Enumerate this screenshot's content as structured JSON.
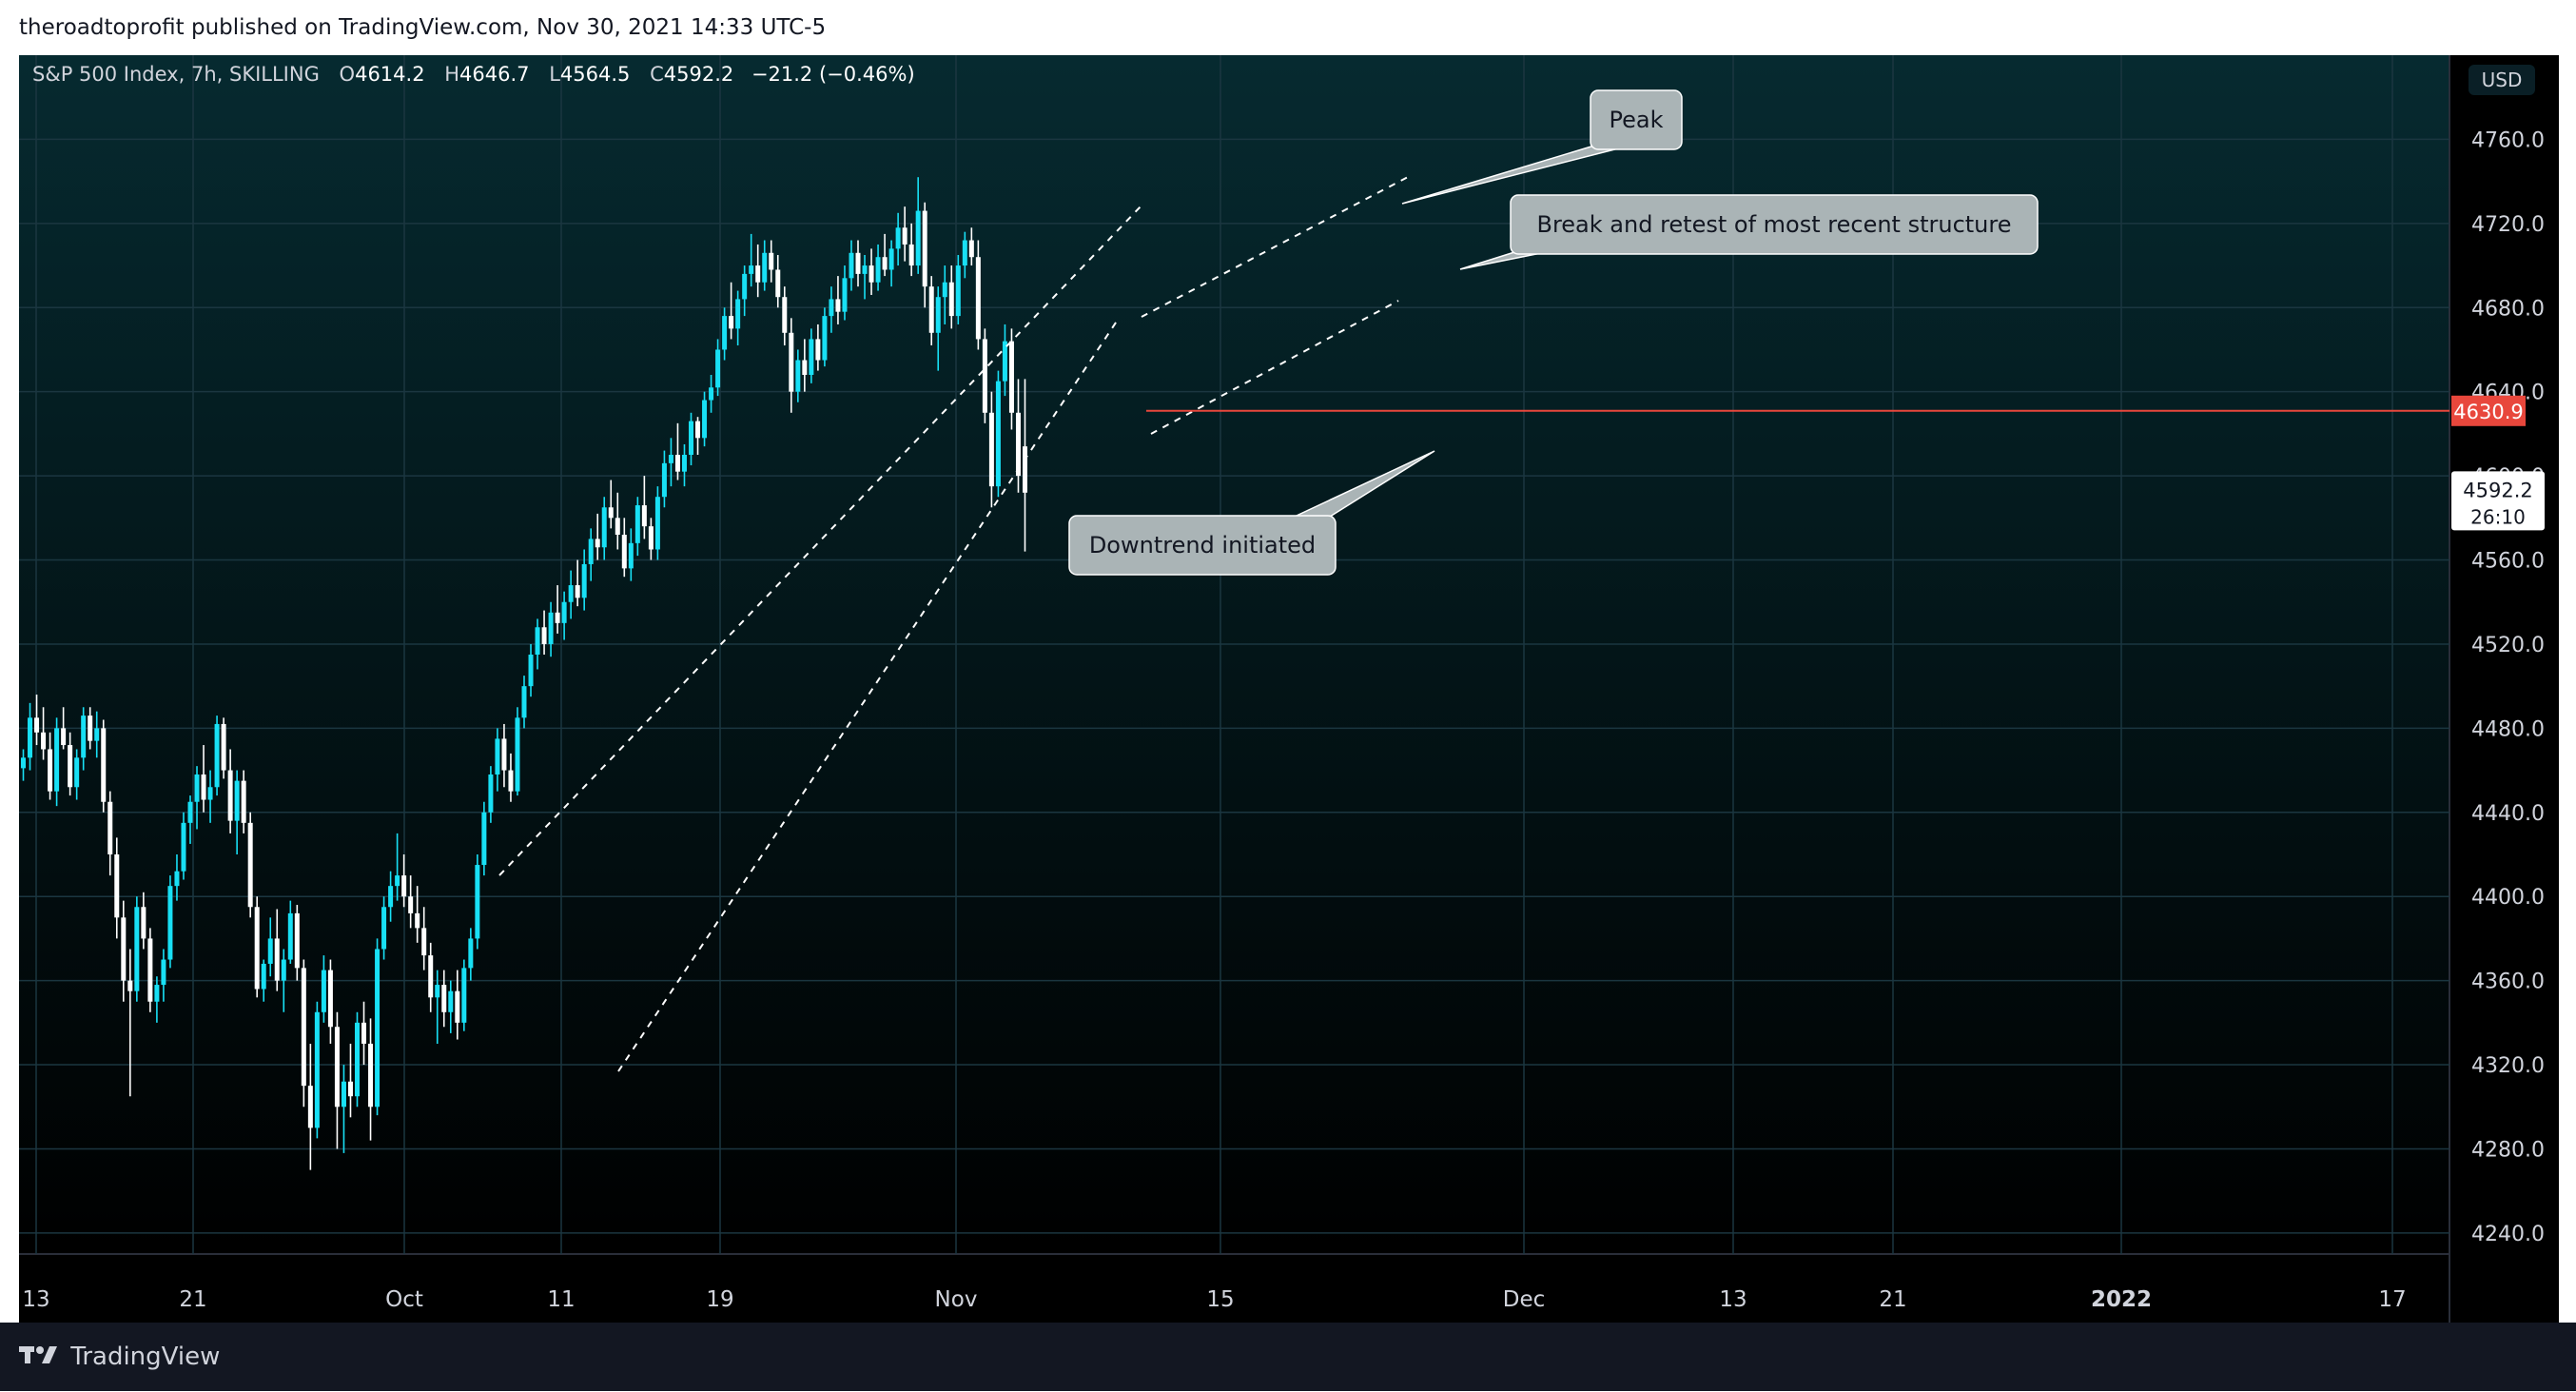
{
  "header": {
    "text": "theroadtoprofit published on TradingView.com, Nov 30, 2021 14:33 UTC-5"
  },
  "legend": {
    "symbol": "S&P 500 Index, 7h, SKILLING",
    "o_label": "O",
    "o_value": "4614.2",
    "h_label": "H",
    "h_value": "4646.7",
    "l_label": "L",
    "l_value": "4564.5",
    "c_label": "C",
    "c_value": "4592.2",
    "change": "−21.2 (−0.46%)"
  },
  "currency": "USD",
  "footer": {
    "brand": "TradingView"
  },
  "colors": {
    "bg_top": "#062a30",
    "bg_bottom": "#000000",
    "up": "#18e0f5",
    "down": "#ffffff",
    "level": "#e8473c",
    "grid": "#1b3640",
    "axis_text": "#d1d4dc",
    "callout_bg": "#aab4b6"
  },
  "chart_data": {
    "type": "candlestick",
    "y_ticks": [
      "4240.0",
      "4280.0",
      "4320.0",
      "4360.0",
      "4400.0",
      "4440.0",
      "4480.0",
      "4520.0",
      "4560.0",
      "4600.0",
      "4640.0",
      "4680.0",
      "4720.0",
      "4760.0"
    ],
    "x_ticks": [
      "13",
      "21",
      "Oct",
      "11",
      "19",
      "Nov",
      "15",
      "Dec",
      "13",
      "21",
      "2022",
      "17"
    ],
    "ylim": [
      4230,
      4800
    ],
    "horizontal_level": {
      "value": 4630.9,
      "label": "4630.9"
    },
    "last_price": {
      "label": "4592.2",
      "countdown": "26:10"
    },
    "annotations": [
      "Peak",
      "Break and retest of most recent structure",
      "Downtrend initiated"
    ],
    "candles": [
      [
        4461,
        4470,
        4455,
        4466
      ],
      [
        4466,
        4492,
        4460,
        4485
      ],
      [
        4485,
        4496,
        4472,
        4478
      ],
      [
        4478,
        4490,
        4465,
        4470
      ],
      [
        4470,
        4478,
        4446,
        4450
      ],
      [
        4450,
        4485,
        4443,
        4480
      ],
      [
        4480,
        4490,
        4470,
        4472
      ],
      [
        4472,
        4478,
        4448,
        4452
      ],
      [
        4452,
        4470,
        4446,
        4466
      ],
      [
        4466,
        4490,
        4460,
        4486
      ],
      [
        4486,
        4490,
        4470,
        4474
      ],
      [
        4474,
        4488,
        4466,
        4480
      ],
      [
        4480,
        4484,
        4440,
        4445
      ],
      [
        4445,
        4450,
        4410,
        4420
      ],
      [
        4420,
        4428,
        4380,
        4390
      ],
      [
        4390,
        4398,
        4350,
        4360
      ],
      [
        4360,
        4375,
        4305,
        4355
      ],
      [
        4355,
        4400,
        4350,
        4395
      ],
      [
        4395,
        4402,
        4375,
        4380
      ],
      [
        4380,
        4385,
        4345,
        4350
      ],
      [
        4350,
        4362,
        4340,
        4358
      ],
      [
        4358,
        4375,
        4350,
        4370
      ],
      [
        4370,
        4410,
        4366,
        4405
      ],
      [
        4405,
        4420,
        4398,
        4412
      ],
      [
        4412,
        4440,
        4408,
        4435
      ],
      [
        4435,
        4448,
        4425,
        4445
      ],
      [
        4445,
        4462,
        4432,
        4458
      ],
      [
        4458,
        4472,
        4440,
        4446
      ],
      [
        4446,
        4460,
        4435,
        4452
      ],
      [
        4452,
        4486,
        4448,
        4482
      ],
      [
        4482,
        4485,
        4456,
        4460
      ],
      [
        4460,
        4470,
        4430,
        4436
      ],
      [
        4436,
        4460,
        4420,
        4455
      ],
      [
        4455,
        4460,
        4430,
        4435
      ],
      [
        4435,
        4440,
        4390,
        4395
      ],
      [
        4395,
        4400,
        4352,
        4356
      ],
      [
        4356,
        4370,
        4350,
        4368
      ],
      [
        4368,
        4390,
        4362,
        4380
      ],
      [
        4380,
        4394,
        4355,
        4360
      ],
      [
        4360,
        4375,
        4345,
        4370
      ],
      [
        4370,
        4398,
        4368,
        4392
      ],
      [
        4392,
        4396,
        4360,
        4366
      ],
      [
        4366,
        4370,
        4300,
        4310
      ],
      [
        4310,
        4330,
        4270,
        4290
      ],
      [
        4290,
        4350,
        4285,
        4345
      ],
      [
        4345,
        4372,
        4340,
        4365
      ],
      [
        4365,
        4370,
        4330,
        4338
      ],
      [
        4338,
        4345,
        4280,
        4300
      ],
      [
        4300,
        4320,
        4278,
        4312
      ],
      [
        4312,
        4330,
        4295,
        4305
      ],
      [
        4305,
        4345,
        4300,
        4340
      ],
      [
        4340,
        4350,
        4320,
        4330
      ],
      [
        4330,
        4342,
        4284,
        4300
      ],
      [
        4300,
        4380,
        4296,
        4375
      ],
      [
        4375,
        4400,
        4370,
        4395
      ],
      [
        4395,
        4412,
        4388,
        4405
      ],
      [
        4405,
        4430,
        4398,
        4410
      ],
      [
        4410,
        4420,
        4395,
        4400
      ],
      [
        4400,
        4410,
        4385,
        4392
      ],
      [
        4392,
        4405,
        4378,
        4385
      ],
      [
        4385,
        4395,
        4365,
        4372
      ],
      [
        4372,
        4378,
        4345,
        4352
      ],
      [
        4352,
        4365,
        4330,
        4358
      ],
      [
        4358,
        4365,
        4338,
        4345
      ],
      [
        4345,
        4360,
        4335,
        4355
      ],
      [
        4355,
        4365,
        4332,
        4340
      ],
      [
        4340,
        4370,
        4336,
        4366
      ],
      [
        4366,
        4385,
        4360,
        4380
      ],
      [
        4380,
        4420,
        4375,
        4415
      ],
      [
        4415,
        4445,
        4410,
        4440
      ],
      [
        4440,
        4462,
        4435,
        4458
      ],
      [
        4458,
        4480,
        4450,
        4475
      ],
      [
        4475,
        4482,
        4452,
        4460
      ],
      [
        4460,
        4468,
        4445,
        4450
      ],
      [
        4450,
        4490,
        4448,
        4485
      ],
      [
        4485,
        4505,
        4480,
        4500
      ],
      [
        4500,
        4520,
        4495,
        4515
      ],
      [
        4515,
        4532,
        4508,
        4528
      ],
      [
        4528,
        4536,
        4515,
        4520
      ],
      [
        4520,
        4540,
        4514,
        4535
      ],
      [
        4535,
        4548,
        4525,
        4530
      ],
      [
        4530,
        4545,
        4522,
        4540
      ],
      [
        4540,
        4555,
        4532,
        4548
      ],
      [
        4548,
        4560,
        4538,
        4542
      ],
      [
        4542,
        4565,
        4536,
        4558
      ],
      [
        4558,
        4575,
        4550,
        4570
      ],
      [
        4570,
        4582,
        4560,
        4566
      ],
      [
        4566,
        4590,
        4560,
        4585
      ],
      [
        4585,
        4598,
        4575,
        4580
      ],
      [
        4580,
        4592,
        4565,
        4572
      ],
      [
        4572,
        4580,
        4552,
        4556
      ],
      [
        4556,
        4575,
        4550,
        4568
      ],
      [
        4568,
        4590,
        4562,
        4586
      ],
      [
        4586,
        4600,
        4570,
        4576
      ],
      [
        4576,
        4580,
        4560,
        4565
      ],
      [
        4565,
        4595,
        4560,
        4590
      ],
      [
        4590,
        4612,
        4585,
        4606
      ],
      [
        4606,
        4618,
        4595,
        4610
      ],
      [
        4610,
        4625,
        4598,
        4602
      ],
      [
        4602,
        4615,
        4595,
        4610
      ],
      [
        4610,
        4630,
        4605,
        4626
      ],
      [
        4626,
        4628,
        4610,
        4618
      ],
      [
        4618,
        4640,
        4614,
        4636
      ],
      [
        4636,
        4648,
        4630,
        4642
      ],
      [
        4642,
        4665,
        4638,
        4660
      ],
      [
        4660,
        4680,
        4655,
        4676
      ],
      [
        4676,
        4692,
        4665,
        4670
      ],
      [
        4670,
        4688,
        4662,
        4684
      ],
      [
        4684,
        4700,
        4676,
        4696
      ],
      [
        4696,
        4715,
        4690,
        4700
      ],
      [
        4700,
        4710,
        4685,
        4692
      ],
      [
        4692,
        4712,
        4688,
        4706
      ],
      [
        4706,
        4712,
        4692,
        4698
      ],
      [
        4698,
        4705,
        4680,
        4685
      ],
      [
        4685,
        4690,
        4662,
        4668
      ],
      [
        4668,
        4675,
        4630,
        4640
      ],
      [
        4640,
        4660,
        4635,
        4655
      ],
      [
        4655,
        4665,
        4640,
        4648
      ],
      [
        4648,
        4670,
        4644,
        4665
      ],
      [
        4665,
        4672,
        4650,
        4655
      ],
      [
        4655,
        4680,
        4652,
        4676
      ],
      [
        4676,
        4690,
        4668,
        4684
      ],
      [
        4684,
        4695,
        4672,
        4678
      ],
      [
        4678,
        4700,
        4674,
        4694
      ],
      [
        4694,
        4712,
        4688,
        4706
      ],
      [
        4706,
        4712,
        4690,
        4696
      ],
      [
        4696,
        4705,
        4684,
        4700
      ],
      [
        4700,
        4708,
        4686,
        4692
      ],
      [
        4692,
        4710,
        4688,
        4704
      ],
      [
        4704,
        4715,
        4695,
        4698
      ],
      [
        4698,
        4712,
        4690,
        4708
      ],
      [
        4708,
        4725,
        4700,
        4718
      ],
      [
        4718,
        4728,
        4702,
        4710
      ],
      [
        4710,
        4720,
        4695,
        4700
      ],
      [
        4700,
        4742,
        4696,
        4726
      ],
      [
        4726,
        4730,
        4680,
        4690
      ],
      [
        4690,
        4695,
        4662,
        4668
      ],
      [
        4668,
        4690,
        4650,
        4685
      ],
      [
        4685,
        4700,
        4672,
        4692
      ],
      [
        4692,
        4700,
        4670,
        4676
      ],
      [
        4676,
        4705,
        4672,
        4700
      ],
      [
        4700,
        4716,
        4694,
        4712
      ],
      [
        4712,
        4718,
        4700,
        4704
      ],
      [
        4704,
        4712,
        4660,
        4665
      ],
      [
        4665,
        4670,
        4625,
        4630
      ],
      [
        4630,
        4640,
        4585,
        4595
      ],
      [
        4595,
        4650,
        4590,
        4645
      ],
      [
        4645,
        4672,
        4638,
        4664
      ],
      [
        4664,
        4670,
        4622,
        4630
      ],
      [
        4630,
        4646,
        4592,
        4600
      ],
      [
        4614,
        4646,
        4564,
        4592
      ]
    ]
  }
}
